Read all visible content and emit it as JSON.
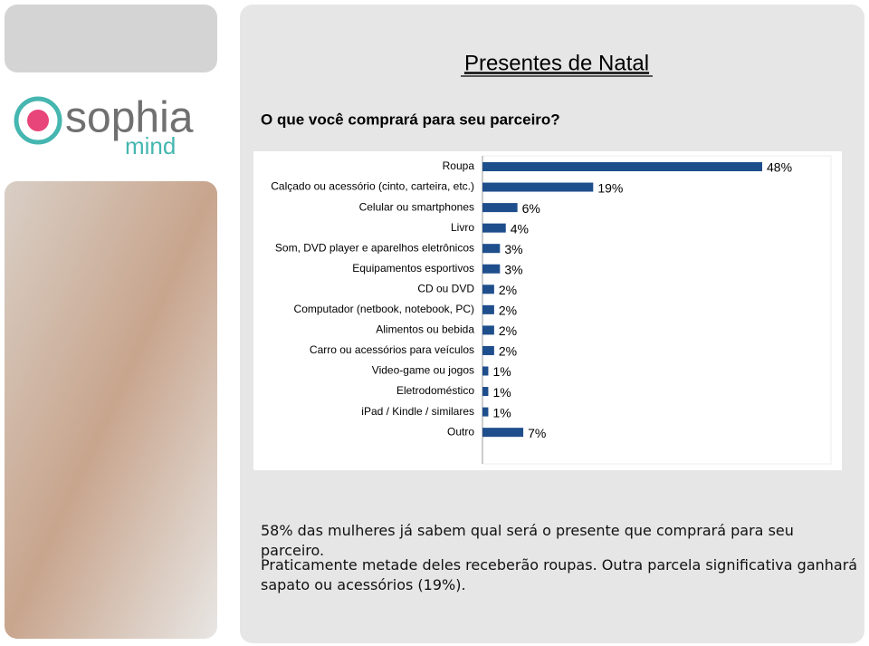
{
  "logo": {
    "name": "sophia",
    "tagline": "mind"
  },
  "slide": {
    "title": "Presentes de Natal",
    "question": "O que você comprará para seu parceiro?",
    "paragraphs": [
      "58% das mulheres já sabem qual será o presente que comprará para seu parceiro.",
      "Praticamente metade deles receberão roupas. Outra parcela significativa ganhará sapato ou acessórios (19%)."
    ]
  },
  "chart_data": {
    "type": "hbar",
    "color": "#1f4e8c",
    "categories": [
      "Roupa",
      "Calçado ou acessório (cinto, carteira, etc.)",
      "Celular ou smartphones",
      "Livro",
      "Som, DVD player e aparelhos eletrônicos",
      "Equipamentos esportivos",
      "CD ou DVD",
      "Computador (netbook, notebook, PC)",
      "Alimentos ou bebida",
      "Carro ou acessórios para veículos",
      "Video-game ou jogos",
      "Eletrodoméstico",
      "iPad / Kindle / similares",
      "Outro"
    ],
    "values": [
      48,
      19,
      6,
      4,
      3,
      3,
      2,
      2,
      2,
      2,
      1,
      1,
      1,
      7
    ],
    "value_labels": [
      "48%",
      "19%",
      "6%",
      "4%",
      "3%",
      "3%",
      "2%",
      "2%",
      "2%",
      "2%",
      "1%",
      "1%",
      "1%",
      "7%"
    ]
  }
}
